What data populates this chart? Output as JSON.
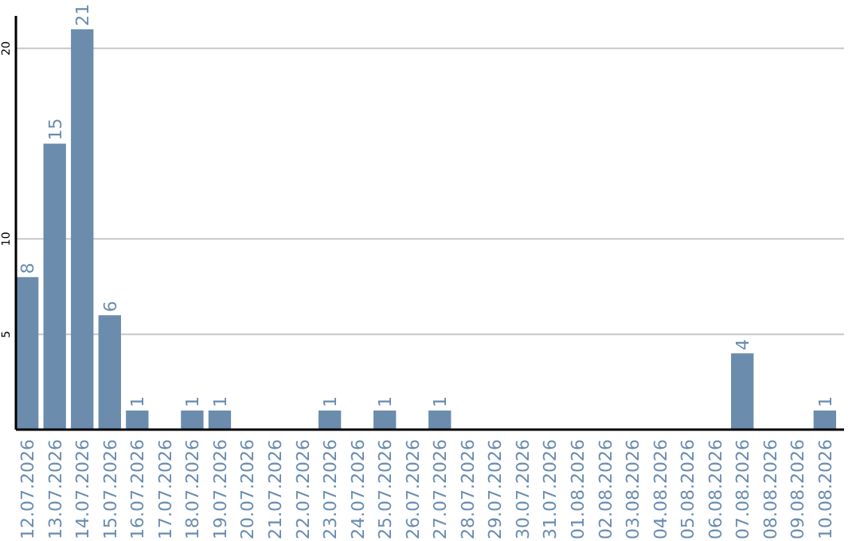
{
  "chart_data": {
    "type": "bar",
    "categories": [
      "12.07.2026",
      "13.07.2026",
      "14.07.2026",
      "15.07.2026",
      "16.07.2026",
      "17.07.2026",
      "18.07.2026",
      "19.07.2026",
      "20.07.2026",
      "21.07.2026",
      "22.07.2026",
      "23.07.2026",
      "24.07.2026",
      "25.07.2026",
      "26.07.2026",
      "27.07.2026",
      "28.07.2026",
      "29.07.2026",
      "30.07.2026",
      "31.07.2026",
      "01.08.2026",
      "02.08.2026",
      "03.08.2026",
      "04.08.2026",
      "05.08.2026",
      "06.08.2026",
      "07.08.2026",
      "08.08.2026",
      "09.08.2026",
      "10.08.2026"
    ],
    "values": [
      8,
      15,
      21,
      6,
      1,
      0,
      1,
      1,
      0,
      0,
      0,
      1,
      0,
      1,
      0,
      1,
      0,
      0,
      0,
      0,
      0,
      0,
      0,
      0,
      0,
      0,
      4,
      0,
      0,
      1
    ],
    "value_labels": [
      "8",
      "15",
      "21",
      "6",
      "1",
      null,
      "1",
      "1",
      null,
      null,
      null,
      "1",
      null,
      "1",
      null,
      "1",
      null,
      null,
      null,
      null,
      null,
      null,
      null,
      null,
      null,
      null,
      "4",
      null,
      null,
      "1"
    ],
    "color": "#6b8cad",
    "ylim": [
      0,
      21.7
    ],
    "yticks": [
      5,
      10,
      20
    ],
    "grid": "y"
  }
}
